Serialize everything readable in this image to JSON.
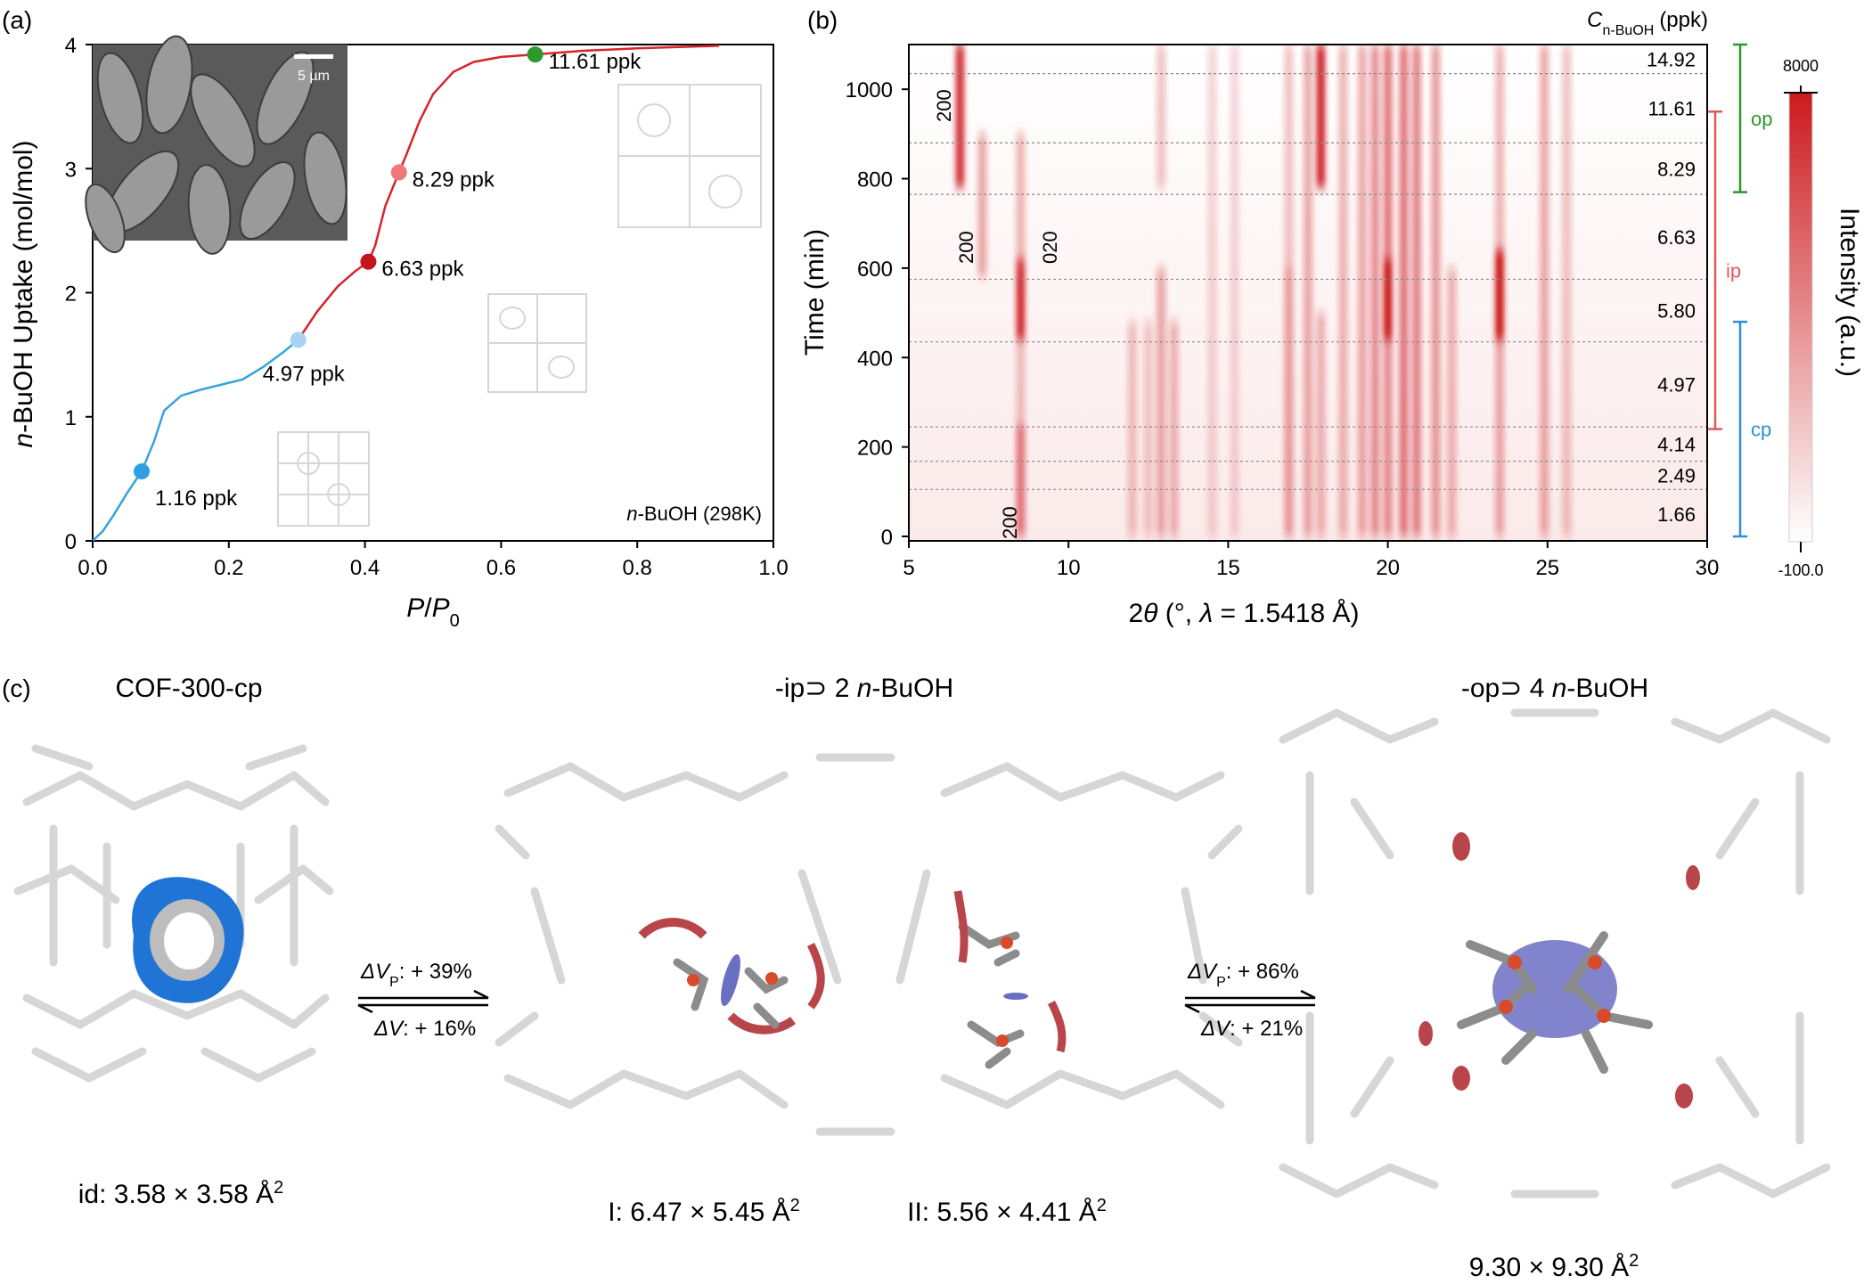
{
  "panels": {
    "a": {
      "label": "(a)",
      "sem_scale_text": "5 µm",
      "legend_prefix": "n",
      "legend_rest": "-BuOH (298K)"
    },
    "b": {
      "label": "(b)",
      "conc_header_sym": "C",
      "conc_header_sub": "n-BuOH",
      "conc_header_unit": "(ppk)",
      "concentrations": [
        "14.92",
        "11.61",
        "8.29",
        "6.63",
        "5.80",
        "4.97",
        "4.14",
        "2.49",
        "1.66"
      ],
      "peak_labels": [
        "200",
        "200",
        "020",
        "200"
      ],
      "phase_labels": [
        "op",
        "ip",
        "cp"
      ],
      "colorbar": {
        "max": "8000",
        "min": "-100.0",
        "title": "Intensity (a.u.)",
        "color_max": "#cc1a1f",
        "color_min": "#ffffff"
      }
    },
    "c": {
      "label": "(c)",
      "titles": {
        "cp": "COF-300-cp",
        "ip_prefix": "-ip⊃ 2 ",
        "ip_italic": "n",
        "ip_rest": "-BuOH",
        "op_prefix": "-op⊃ 4 ",
        "op_italic": "n",
        "op_rest": "-BuOH"
      },
      "arrows": [
        {
          "top_sym": "ΔV",
          "top_sub": "P",
          "top_val": ": + 39%",
          "bottom_sym": "ΔV",
          "bottom_val": ": + 16%"
        },
        {
          "top_sym": "ΔV",
          "top_sub": "P",
          "top_val": ": + 86%",
          "bottom_sym": "ΔV",
          "bottom_val": ": + 21%"
        }
      ],
      "pore_sizes": {
        "cp_prefix": "id: ",
        "cp": "3.58 × 3.58 Å",
        "ip_I_prefix": "I: ",
        "ip_I": "6.47 × 5.45 Å",
        "ip_II_prefix": "II: ",
        "ip_II": "5.56 × 4.41 Å",
        "op": "9.30 × 9.30 Å",
        "exp": "2"
      }
    }
  },
  "chart_data": [
    {
      "type": "line",
      "panel": "a",
      "xlabel": "P/P0",
      "ylabel": "n-BuOH Uptake (mol/mol)",
      "xlim": [
        0.0,
        1.0
      ],
      "ylim": [
        0,
        4
      ],
      "xticks": [
        "0.0",
        "0.2",
        "0.4",
        "0.6",
        "0.8",
        "1.0"
      ],
      "yticks": [
        "0",
        "1",
        "2",
        "3",
        "4"
      ],
      "series": [
        {
          "x": [
            0.0,
            0.015,
            0.03,
            0.05,
            0.072,
            0.09,
            0.105,
            0.13,
            0.16,
            0.19,
            0.22,
            0.25,
            0.28,
            0.302
          ],
          "y": [
            0.0,
            0.08,
            0.2,
            0.38,
            0.56,
            0.8,
            1.05,
            1.17,
            1.22,
            1.26,
            1.3,
            1.4,
            1.52,
            1.62
          ],
          "color": "#35a3dc"
        },
        {
          "x": [
            0.302,
            0.33,
            0.36,
            0.385,
            0.405,
            0.415,
            0.43,
            0.45,
            0.46,
            0.48,
            0.5,
            0.53,
            0.56,
            0.6,
            0.65,
            0.72,
            0.8,
            0.86,
            0.92
          ],
          "y": [
            1.62,
            1.85,
            2.05,
            2.17,
            2.25,
            2.38,
            2.7,
            2.97,
            3.1,
            3.38,
            3.6,
            3.78,
            3.86,
            3.9,
            3.92,
            3.95,
            3.97,
            3.98,
            3.99
          ],
          "color": "#d6242a"
        }
      ],
      "points": [
        {
          "x": 0.072,
          "y": 0.56,
          "label": "1.16 ppk",
          "color": "#2f9fe0"
        },
        {
          "x": 0.302,
          "y": 1.62,
          "label": "4.97 ppk",
          "color": "#a8d4f2"
        },
        {
          "x": 0.405,
          "y": 2.25,
          "label": "6.63 ppk",
          "color": "#c4141c"
        },
        {
          "x": 0.45,
          "y": 2.97,
          "label": "8.29 ppk",
          "color": "#f07878"
        },
        {
          "x": 0.65,
          "y": 3.92,
          "label": "11.61 ppk",
          "color": "#2a9a2a"
        }
      ]
    },
    {
      "type": "heatmap",
      "panel": "b",
      "xlabel": "2θ (°, λ = 1.5418 Å)",
      "ylabel": "Time (min)",
      "xlim": [
        5,
        30
      ],
      "ylim": [
        -10,
        1100
      ],
      "xticks": [
        "5",
        "10",
        "15",
        "20",
        "25",
        "30"
      ],
      "yticks": [
        "0",
        "200",
        "400",
        "600",
        "800",
        "1000"
      ],
      "boundaries_min": [
        105,
        168,
        245,
        435,
        575,
        765,
        880,
        1035
      ],
      "phase_ranges_min": {
        "op": [
          770,
          1100
        ],
        "ip": [
          240,
          950
        ],
        "cp": [
          0,
          480
        ]
      },
      "peaks_2theta": [
        6.6,
        7.3,
        8.5,
        12.0,
        12.5,
        12.9,
        13.3,
        14.5,
        15.2,
        16.9,
        17.5,
        17.9,
        18.6,
        19.2,
        19.6,
        20.0,
        20.5,
        20.9,
        21.5,
        22.0,
        23.5,
        24.9,
        25.6
      ]
    }
  ]
}
